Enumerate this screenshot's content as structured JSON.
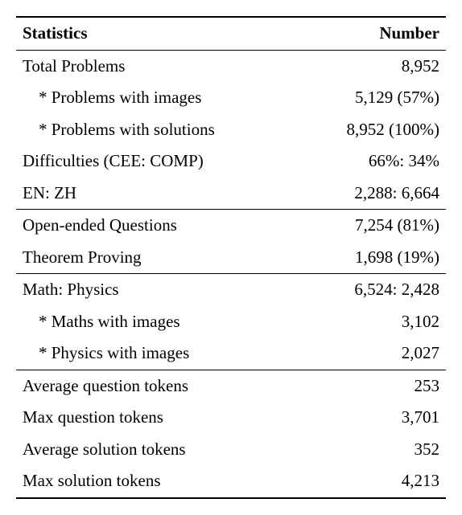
{
  "table": {
    "headers": {
      "stat": "Statistics",
      "num": "Number"
    },
    "sections": [
      {
        "rows": [
          {
            "label": "Total Problems",
            "value": "8,952",
            "indent": false
          },
          {
            "label": "* Problems with images",
            "value": "5,129 (57%)",
            "indent": true
          },
          {
            "label": "* Problems with solutions",
            "value": "8,952 (100%)",
            "indent": true
          },
          {
            "label": "Difficulties (CEE: COMP)",
            "value": "66%: 34%",
            "indent": false
          },
          {
            "label": "EN: ZH",
            "value": "2,288: 6,664",
            "indent": false
          }
        ]
      },
      {
        "rows": [
          {
            "label": "Open-ended Questions",
            "value": "7,254 (81%)",
            "indent": false
          },
          {
            "label": "Theorem Proving",
            "value": "1,698 (19%)",
            "indent": false
          }
        ]
      },
      {
        "rows": [
          {
            "label": "Math: Physics",
            "value": "6,524: 2,428",
            "indent": false
          },
          {
            "label": "* Maths with images",
            "value": "3,102",
            "indent": true
          },
          {
            "label": "* Physics with images",
            "value": "2,027",
            "indent": true
          }
        ]
      },
      {
        "rows": [
          {
            "label": "Average question tokens",
            "value": "253",
            "indent": false
          },
          {
            "label": "Max question tokens",
            "value": "3,701",
            "indent": false
          },
          {
            "label": "Average solution tokens",
            "value": "352",
            "indent": false
          },
          {
            "label": "Max solution tokens",
            "value": "4,213",
            "indent": false
          }
        ]
      }
    ]
  },
  "caption_fragment": ""
}
